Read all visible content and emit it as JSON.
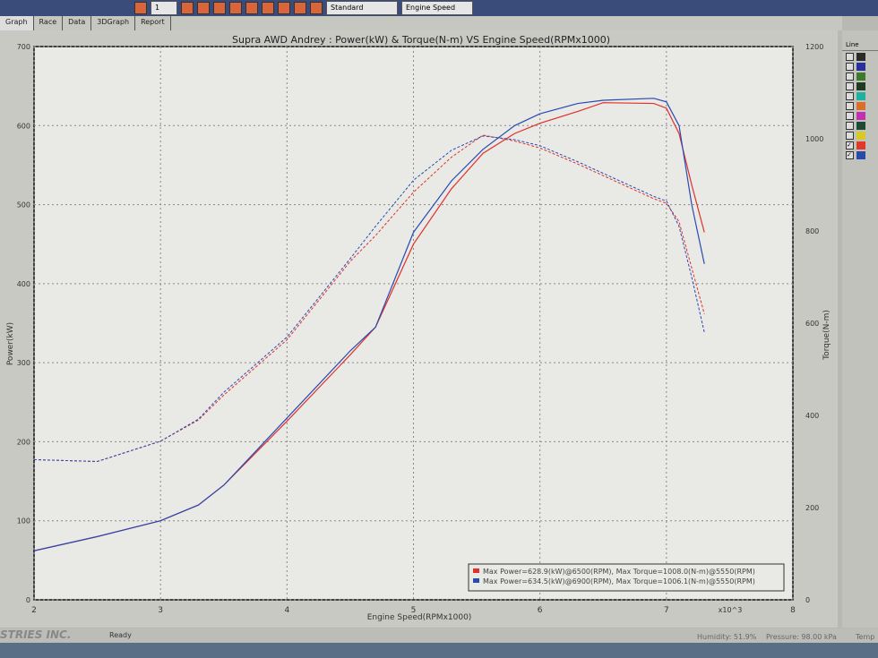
{
  "toolbar": {
    "page_value": "1",
    "mode_select": "Standard",
    "x_axis_select": "Engine Speed"
  },
  "tabs": [
    {
      "label": "Graph",
      "icon": "graph-icon"
    },
    {
      "label": "Race",
      "icon": "race-icon"
    },
    {
      "label": "Data",
      "icon": "data-icon"
    },
    {
      "label": "3DGraph",
      "icon": "3dgraph-icon"
    },
    {
      "label": "Report",
      "icon": "report-icon"
    }
  ],
  "side_panel": {
    "header": "Line",
    "rows": [
      {
        "color": "#2a2a2a",
        "checked": false
      },
      {
        "color": "#2a2fa0",
        "checked": false
      },
      {
        "color": "#3f7a2c",
        "checked": false
      },
      {
        "color": "#1f3b22",
        "checked": false
      },
      {
        "color": "#20b0a0",
        "checked": false
      },
      {
        "color": "#d8702c",
        "checked": false
      },
      {
        "color": "#c030b0",
        "checked": false
      },
      {
        "color": "#1f4a34",
        "checked": false
      },
      {
        "color": "#d8c828",
        "checked": false
      },
      {
        "color": "#e03a2a",
        "checked": true
      },
      {
        "color": "#2a4aa8",
        "checked": true
      }
    ]
  },
  "status": {
    "brand": "STRIES INC.",
    "state": "Ready",
    "humidity": "Humidity: 51.9%",
    "pressure": "Pressure: 98.00 kPa",
    "temp": "Temp"
  },
  "chart_data": {
    "type": "line",
    "title": "Supra AWD Andrey : Power(kW) & Torque(N-m) VS Engine Speed(RPMx1000)",
    "xlabel": "Engine Speed(RPMx1000)",
    "x_multiplier_label": "x10^3",
    "ylabel": "Power(kW)",
    "y2label": "Torque(N-m)",
    "xlim": [
      2,
      8
    ],
    "ylim": [
      0,
      700
    ],
    "y2lim": [
      0,
      1200
    ],
    "xticks": [
      "2",
      "3",
      "4",
      "5",
      "6",
      "7",
      "8"
    ],
    "yticks": [
      "0",
      "100",
      "200",
      "300",
      "400",
      "500",
      "600",
      "700"
    ],
    "y2ticks": [
      "0",
      "200",
      "400",
      "600",
      "800",
      "1000",
      "1200"
    ],
    "grid": true,
    "legend_position": "bottom-right",
    "x": [
      2.0,
      2.5,
      3.0,
      3.3,
      3.5,
      4.0,
      4.5,
      4.7,
      5.0,
      5.3,
      5.55,
      5.8,
      6.0,
      6.3,
      6.5,
      6.9,
      7.0,
      7.1,
      7.2,
      7.3
    ],
    "series": [
      {
        "name": "Max Power=628.9(kW)@6500(RPM), Max Torque=1008.0(N-m)@5550(RPM)",
        "color": "#e0302a",
        "power": [
          62,
          80,
          100,
          120,
          145,
          226,
          310,
          345,
          450,
          520,
          565,
          590,
          603,
          618,
          629,
          628,
          622,
          590,
          525,
          465
        ],
        "torque": [
          304,
          300,
          344,
          390,
          444,
          564,
          734,
          790,
          884,
          960,
          1008,
          995,
          980,
          945,
          920,
          870,
          860,
          820,
          720,
          620
        ]
      },
      {
        "name": "Max Power=634.5(kW)@6900(RPM), Max Torque=1006.1(N-m)@5550(RPM)",
        "color": "#2a4ab0",
        "power": [
          62,
          80,
          100,
          120,
          145,
          230,
          315,
          345,
          465,
          530,
          570,
          600,
          615,
          628,
          632,
          634.5,
          630,
          600,
          500,
          425
        ],
        "torque": [
          304,
          300,
          344,
          392,
          450,
          570,
          740,
          810,
          910,
          975,
          1006.1,
          998,
          985,
          950,
          925,
          875,
          865,
          810,
          700,
          580
        ]
      }
    ]
  }
}
